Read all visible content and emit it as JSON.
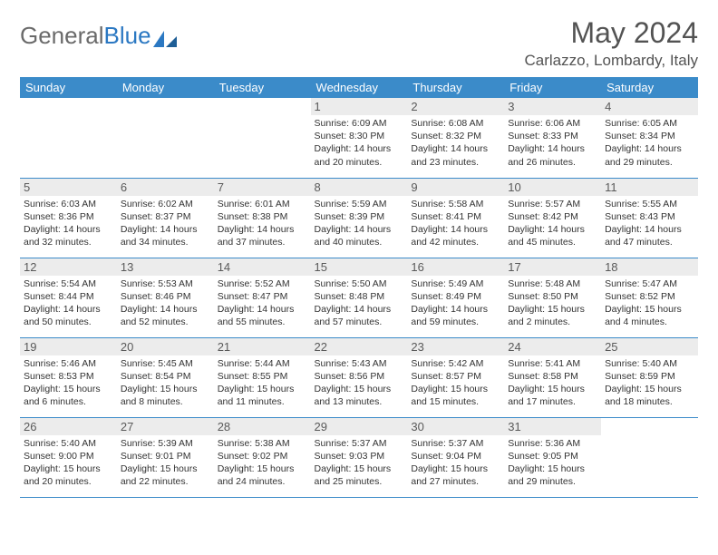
{
  "brand": {
    "part1": "General",
    "part2": "Blue"
  },
  "title": "May 2024",
  "location": "Carlazzo, Lombardy, Italy",
  "colors": {
    "header_bg": "#3b8bc9",
    "header_text": "#ffffff",
    "daynum_bg": "#ececec",
    "border": "#3b8bc9",
    "title_color": "#535353",
    "logo_gray": "#6a6a6a",
    "logo_blue": "#2b78c2"
  },
  "fonts": {
    "title_pt": 32,
    "location_pt": 17,
    "dayhdr_pt": 13,
    "cell_pt": 10.5
  },
  "day_headers": [
    "Sunday",
    "Monday",
    "Tuesday",
    "Wednesday",
    "Thursday",
    "Friday",
    "Saturday"
  ],
  "weeks": [
    [
      {
        "n": "",
        "sr": "",
        "ss": "",
        "dl": ""
      },
      {
        "n": "",
        "sr": "",
        "ss": "",
        "dl": ""
      },
      {
        "n": "",
        "sr": "",
        "ss": "",
        "dl": ""
      },
      {
        "n": "1",
        "sr": "Sunrise: 6:09 AM",
        "ss": "Sunset: 8:30 PM",
        "dl": "Daylight: 14 hours and 20 minutes."
      },
      {
        "n": "2",
        "sr": "Sunrise: 6:08 AM",
        "ss": "Sunset: 8:32 PM",
        "dl": "Daylight: 14 hours and 23 minutes."
      },
      {
        "n": "3",
        "sr": "Sunrise: 6:06 AM",
        "ss": "Sunset: 8:33 PM",
        "dl": "Daylight: 14 hours and 26 minutes."
      },
      {
        "n": "4",
        "sr": "Sunrise: 6:05 AM",
        "ss": "Sunset: 8:34 PM",
        "dl": "Daylight: 14 hours and 29 minutes."
      }
    ],
    [
      {
        "n": "5",
        "sr": "Sunrise: 6:03 AM",
        "ss": "Sunset: 8:36 PM",
        "dl": "Daylight: 14 hours and 32 minutes."
      },
      {
        "n": "6",
        "sr": "Sunrise: 6:02 AM",
        "ss": "Sunset: 8:37 PM",
        "dl": "Daylight: 14 hours and 34 minutes."
      },
      {
        "n": "7",
        "sr": "Sunrise: 6:01 AM",
        "ss": "Sunset: 8:38 PM",
        "dl": "Daylight: 14 hours and 37 minutes."
      },
      {
        "n": "8",
        "sr": "Sunrise: 5:59 AM",
        "ss": "Sunset: 8:39 PM",
        "dl": "Daylight: 14 hours and 40 minutes."
      },
      {
        "n": "9",
        "sr": "Sunrise: 5:58 AM",
        "ss": "Sunset: 8:41 PM",
        "dl": "Daylight: 14 hours and 42 minutes."
      },
      {
        "n": "10",
        "sr": "Sunrise: 5:57 AM",
        "ss": "Sunset: 8:42 PM",
        "dl": "Daylight: 14 hours and 45 minutes."
      },
      {
        "n": "11",
        "sr": "Sunrise: 5:55 AM",
        "ss": "Sunset: 8:43 PM",
        "dl": "Daylight: 14 hours and 47 minutes."
      }
    ],
    [
      {
        "n": "12",
        "sr": "Sunrise: 5:54 AM",
        "ss": "Sunset: 8:44 PM",
        "dl": "Daylight: 14 hours and 50 minutes."
      },
      {
        "n": "13",
        "sr": "Sunrise: 5:53 AM",
        "ss": "Sunset: 8:46 PM",
        "dl": "Daylight: 14 hours and 52 minutes."
      },
      {
        "n": "14",
        "sr": "Sunrise: 5:52 AM",
        "ss": "Sunset: 8:47 PM",
        "dl": "Daylight: 14 hours and 55 minutes."
      },
      {
        "n": "15",
        "sr": "Sunrise: 5:50 AM",
        "ss": "Sunset: 8:48 PM",
        "dl": "Daylight: 14 hours and 57 minutes."
      },
      {
        "n": "16",
        "sr": "Sunrise: 5:49 AM",
        "ss": "Sunset: 8:49 PM",
        "dl": "Daylight: 14 hours and 59 minutes."
      },
      {
        "n": "17",
        "sr": "Sunrise: 5:48 AM",
        "ss": "Sunset: 8:50 PM",
        "dl": "Daylight: 15 hours and 2 minutes."
      },
      {
        "n": "18",
        "sr": "Sunrise: 5:47 AM",
        "ss": "Sunset: 8:52 PM",
        "dl": "Daylight: 15 hours and 4 minutes."
      }
    ],
    [
      {
        "n": "19",
        "sr": "Sunrise: 5:46 AM",
        "ss": "Sunset: 8:53 PM",
        "dl": "Daylight: 15 hours and 6 minutes."
      },
      {
        "n": "20",
        "sr": "Sunrise: 5:45 AM",
        "ss": "Sunset: 8:54 PM",
        "dl": "Daylight: 15 hours and 8 minutes."
      },
      {
        "n": "21",
        "sr": "Sunrise: 5:44 AM",
        "ss": "Sunset: 8:55 PM",
        "dl": "Daylight: 15 hours and 11 minutes."
      },
      {
        "n": "22",
        "sr": "Sunrise: 5:43 AM",
        "ss": "Sunset: 8:56 PM",
        "dl": "Daylight: 15 hours and 13 minutes."
      },
      {
        "n": "23",
        "sr": "Sunrise: 5:42 AM",
        "ss": "Sunset: 8:57 PM",
        "dl": "Daylight: 15 hours and 15 minutes."
      },
      {
        "n": "24",
        "sr": "Sunrise: 5:41 AM",
        "ss": "Sunset: 8:58 PM",
        "dl": "Daylight: 15 hours and 17 minutes."
      },
      {
        "n": "25",
        "sr": "Sunrise: 5:40 AM",
        "ss": "Sunset: 8:59 PM",
        "dl": "Daylight: 15 hours and 18 minutes."
      }
    ],
    [
      {
        "n": "26",
        "sr": "Sunrise: 5:40 AM",
        "ss": "Sunset: 9:00 PM",
        "dl": "Daylight: 15 hours and 20 minutes."
      },
      {
        "n": "27",
        "sr": "Sunrise: 5:39 AM",
        "ss": "Sunset: 9:01 PM",
        "dl": "Daylight: 15 hours and 22 minutes."
      },
      {
        "n": "28",
        "sr": "Sunrise: 5:38 AM",
        "ss": "Sunset: 9:02 PM",
        "dl": "Daylight: 15 hours and 24 minutes."
      },
      {
        "n": "29",
        "sr": "Sunrise: 5:37 AM",
        "ss": "Sunset: 9:03 PM",
        "dl": "Daylight: 15 hours and 25 minutes."
      },
      {
        "n": "30",
        "sr": "Sunrise: 5:37 AM",
        "ss": "Sunset: 9:04 PM",
        "dl": "Daylight: 15 hours and 27 minutes."
      },
      {
        "n": "31",
        "sr": "Sunrise: 5:36 AM",
        "ss": "Sunset: 9:05 PM",
        "dl": "Daylight: 15 hours and 29 minutes."
      },
      {
        "n": "",
        "sr": "",
        "ss": "",
        "dl": ""
      }
    ]
  ]
}
